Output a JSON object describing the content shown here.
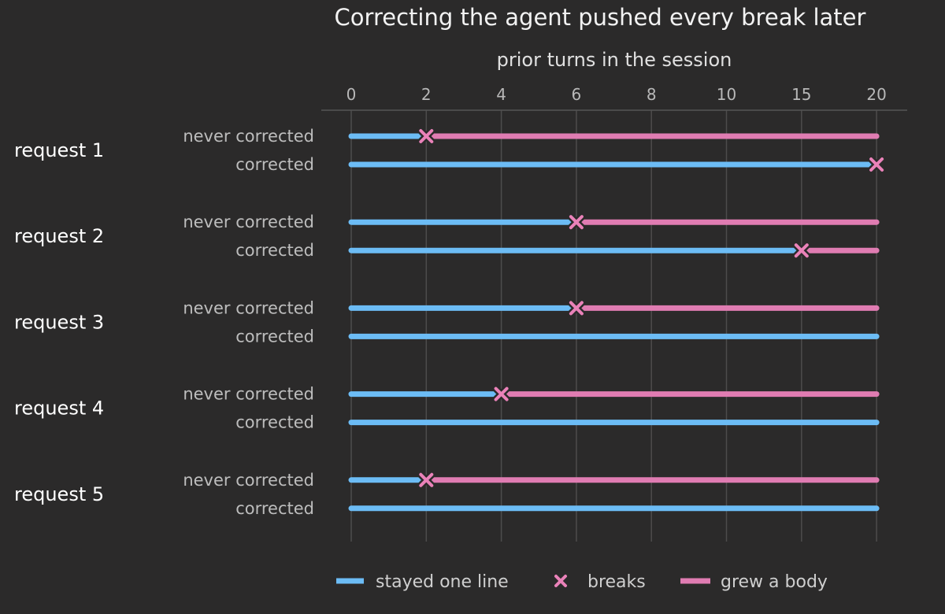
{
  "chart_data": {
    "type": "bar",
    "title": "Correcting the agent pushed every break later",
    "xlabel": "prior turns in the session",
    "ylabel": "",
    "x_scale": "piecewise",
    "x_ticks": [
      0,
      2,
      4,
      6,
      8,
      10,
      15,
      20
    ],
    "xlim": [
      0,
      20
    ],
    "grid": true,
    "legend_position": "bottom",
    "colors": {
      "one_line": "#6cbcf5",
      "breaks": "#ea82b9",
      "body": "#e07cb2",
      "background": "#2b2a2a"
    },
    "legend": [
      {
        "key": "one_line",
        "label": "stayed one line"
      },
      {
        "key": "breaks",
        "label": "breaks"
      },
      {
        "key": "body",
        "label": "grew a body"
      }
    ],
    "groups": [
      {
        "label": "request 1",
        "rows": [
          {
            "label": "never corrected",
            "break_at": 2
          },
          {
            "label": "corrected",
            "break_at": 20
          }
        ]
      },
      {
        "label": "request 2",
        "rows": [
          {
            "label": "never corrected",
            "break_at": 6
          },
          {
            "label": "corrected",
            "break_at": 15
          }
        ]
      },
      {
        "label": "request 3",
        "rows": [
          {
            "label": "never corrected",
            "break_at": 6
          },
          {
            "label": "corrected",
            "break_at": null
          }
        ]
      },
      {
        "label": "request 4",
        "rows": [
          {
            "label": "never corrected",
            "break_at": 4
          },
          {
            "label": "corrected",
            "break_at": null
          }
        ]
      },
      {
        "label": "request 5",
        "rows": [
          {
            "label": "never corrected",
            "break_at": 2
          },
          {
            "label": "corrected",
            "break_at": null
          }
        ]
      }
    ]
  }
}
